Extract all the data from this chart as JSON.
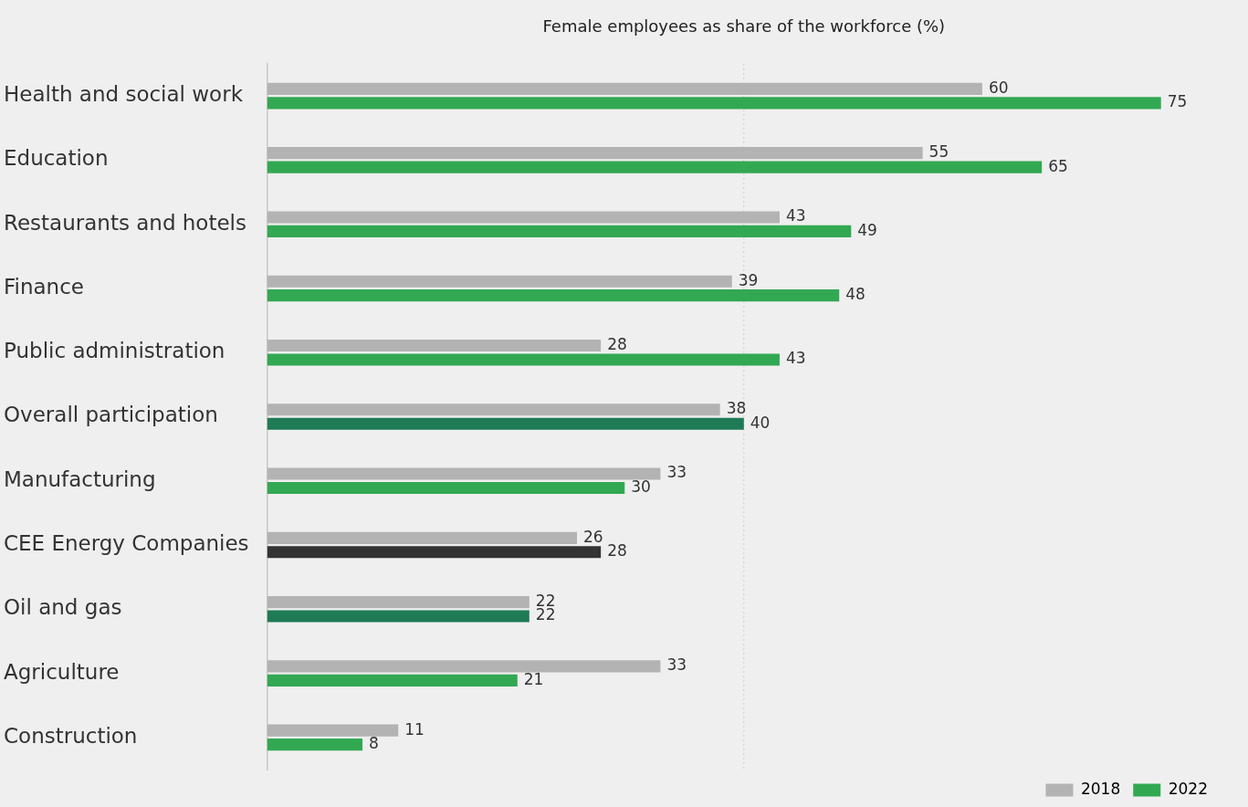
{
  "chart_data": {
    "type": "bar",
    "orientation": "horizontal",
    "title": "Female employees as share of the workforce (%)",
    "categories": [
      "Health and social work",
      "Education",
      "Restaurants and hotels",
      "Finance",
      "Public administration",
      "Overall participation",
      "Manufacturing",
      "CEE Energy Companies",
      "Oil and gas",
      "Agriculture",
      "Construction"
    ],
    "series": [
      {
        "name": "2018",
        "color": "#b3b3b3",
        "values": [
          60,
          55,
          43,
          39,
          28,
          38,
          33,
          26,
          22,
          33,
          11
        ]
      },
      {
        "name": "2022",
        "color": "#32a852",
        "colors": [
          "#32a852",
          "#32a852",
          "#32a852",
          "#32a852",
          "#32a852",
          "#1e7b55",
          "#32a852",
          "#333333",
          "#1e7b55",
          "#32a852",
          "#32a852"
        ],
        "values": [
          75,
          65,
          49,
          48,
          43,
          40,
          30,
          28,
          22,
          21,
          8
        ]
      }
    ],
    "tick_labels": "y",
    "data_labels": true,
    "grid": false,
    "legend": "bottom right",
    "ref_lines": [
      {
        "axis": "x",
        "value": 40,
        "color": "#cccccc",
        "line_style": "dotted"
      }
    ]
  }
}
